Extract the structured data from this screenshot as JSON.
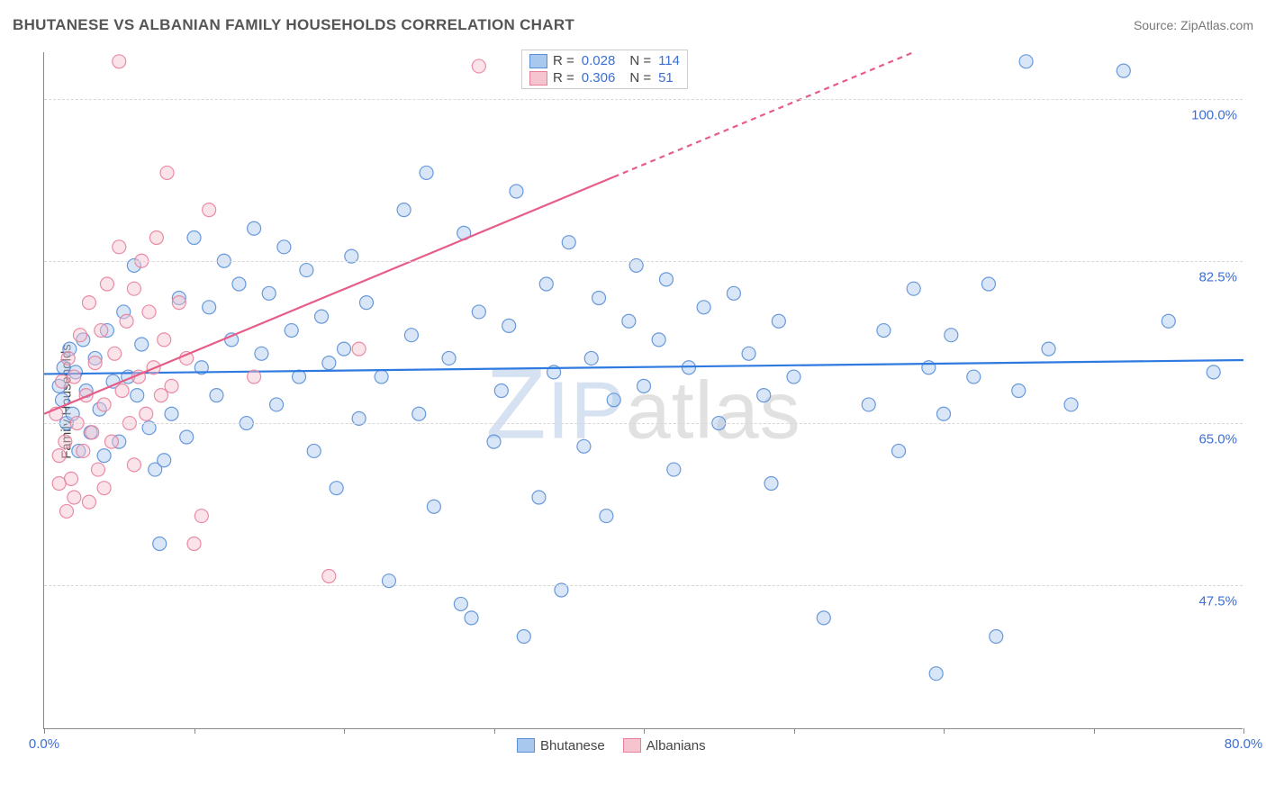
{
  "header": {
    "title": "BHUTANESE VS ALBANIAN FAMILY HOUSEHOLDS CORRELATION CHART",
    "source": "Source: ZipAtlas.com"
  },
  "watermark": {
    "z": "Z",
    "ip": "IP",
    "atlas": "atlas"
  },
  "chart": {
    "type": "scatter-with-regression",
    "ylabel": "Family Households",
    "xlim": [
      0,
      80
    ],
    "ylim": [
      32,
      105
    ],
    "xtick_positions": [
      0,
      10,
      20,
      30,
      40,
      50,
      60,
      70,
      80
    ],
    "xtick_labels": {
      "0": "0.0%",
      "80": "80.0%"
    },
    "ytick_positions": [
      47.5,
      65.0,
      82.5,
      100.0
    ],
    "ytick_labels": [
      "47.5%",
      "65.0%",
      "82.5%",
      "100.0%"
    ],
    "background_color": "#ffffff",
    "grid_color": "#d8d8d8",
    "axis_color": "#888888",
    "label_color": "#3b6fd6",
    "marker_radius": 7.5,
    "marker_opacity": 0.45,
    "marker_stroke_opacity": 0.9,
    "line_width": 2.2,
    "series": [
      {
        "name": "Bhutanese",
        "color_fill": "#a9c8ee",
        "color_stroke": "#5a8fd6",
        "line_color": "#2f7ae0",
        "R": "0.028",
        "N": "114",
        "regression": {
          "x1": 0,
          "y1": 70.3,
          "x2": 80,
          "y2": 71.8,
          "dash_from_x": null
        },
        "points": [
          [
            1.0,
            69.0
          ],
          [
            1.2,
            67.5
          ],
          [
            1.3,
            71.0
          ],
          [
            1.5,
            65.0
          ],
          [
            1.7,
            73.0
          ],
          [
            1.9,
            66.0
          ],
          [
            2.1,
            70.5
          ],
          [
            2.3,
            62.0
          ],
          [
            2.6,
            74.0
          ],
          [
            2.8,
            68.5
          ],
          [
            3.1,
            64.0
          ],
          [
            3.4,
            72.0
          ],
          [
            3.7,
            66.5
          ],
          [
            4.0,
            61.5
          ],
          [
            4.2,
            75.0
          ],
          [
            4.6,
            69.5
          ],
          [
            5.0,
            63.0
          ],
          [
            5.3,
            77.0
          ],
          [
            5.6,
            70.0
          ],
          [
            6.0,
            82.0
          ],
          [
            6.2,
            68.0
          ],
          [
            6.5,
            73.5
          ],
          [
            7.0,
            64.5
          ],
          [
            7.4,
            60.0
          ],
          [
            7.7,
            52.0
          ],
          [
            8.0,
            61.0
          ],
          [
            8.5,
            66.0
          ],
          [
            9.0,
            78.5
          ],
          [
            9.5,
            63.5
          ],
          [
            10.0,
            85.0
          ],
          [
            10.5,
            71.0
          ],
          [
            11.0,
            77.5
          ],
          [
            11.5,
            68.0
          ],
          [
            12.0,
            82.5
          ],
          [
            12.5,
            74.0
          ],
          [
            13.0,
            80.0
          ],
          [
            13.5,
            65.0
          ],
          [
            14.0,
            86.0
          ],
          [
            14.5,
            72.5
          ],
          [
            15.0,
            79.0
          ],
          [
            15.5,
            67.0
          ],
          [
            16.0,
            84.0
          ],
          [
            16.5,
            75.0
          ],
          [
            17.0,
            70.0
          ],
          [
            17.5,
            81.5
          ],
          [
            18.0,
            62.0
          ],
          [
            18.5,
            76.5
          ],
          [
            19.0,
            71.5
          ],
          [
            19.5,
            58.0
          ],
          [
            20.0,
            73.0
          ],
          [
            20.5,
            83.0
          ],
          [
            21.0,
            65.5
          ],
          [
            21.5,
            78.0
          ],
          [
            22.5,
            70.0
          ],
          [
            23.0,
            48.0
          ],
          [
            24.0,
            88.0
          ],
          [
            24.5,
            74.5
          ],
          [
            25.0,
            66.0
          ],
          [
            25.5,
            92.0
          ],
          [
            26.0,
            56.0
          ],
          [
            27.0,
            72.0
          ],
          [
            27.8,
            45.5
          ],
          [
            28.0,
            85.5
          ],
          [
            28.5,
            44.0
          ],
          [
            29.0,
            77.0
          ],
          [
            30.0,
            63.0
          ],
          [
            30.5,
            68.5
          ],
          [
            31.0,
            75.5
          ],
          [
            31.5,
            90.0
          ],
          [
            32.0,
            42.0
          ],
          [
            33.0,
            57.0
          ],
          [
            33.5,
            80.0
          ],
          [
            34.0,
            70.5
          ],
          [
            34.5,
            47.0
          ],
          [
            35.0,
            84.5
          ],
          [
            36.0,
            62.5
          ],
          [
            36.5,
            72.0
          ],
          [
            37.0,
            78.5
          ],
          [
            37.5,
            55.0
          ],
          [
            38.0,
            67.5
          ],
          [
            39.0,
            76.0
          ],
          [
            39.5,
            82.0
          ],
          [
            40.0,
            69.0
          ],
          [
            41.0,
            74.0
          ],
          [
            41.5,
            80.5
          ],
          [
            42.0,
            60.0
          ],
          [
            43.0,
            71.0
          ],
          [
            44.0,
            77.5
          ],
          [
            45.0,
            65.0
          ],
          [
            46.0,
            79.0
          ],
          [
            47.0,
            72.5
          ],
          [
            48.0,
            68.0
          ],
          [
            48.5,
            58.5
          ],
          [
            49.0,
            76.0
          ],
          [
            50.0,
            70.0
          ],
          [
            52.0,
            44.0
          ],
          [
            55.0,
            67.0
          ],
          [
            56.0,
            75.0
          ],
          [
            57.0,
            62.0
          ],
          [
            58.0,
            79.5
          ],
          [
            59.0,
            71.0
          ],
          [
            59.5,
            38.0
          ],
          [
            60.0,
            66.0
          ],
          [
            60.5,
            74.5
          ],
          [
            62.0,
            70.0
          ],
          [
            63.0,
            80.0
          ],
          [
            63.5,
            42.0
          ],
          [
            65.0,
            68.5
          ],
          [
            65.5,
            104.0
          ],
          [
            67.0,
            73.0
          ],
          [
            68.5,
            67.0
          ],
          [
            72.0,
            103.0
          ],
          [
            75.0,
            76.0
          ],
          [
            78.0,
            70.5
          ]
        ]
      },
      {
        "name": "Albanians",
        "color_fill": "#f5c4cf",
        "color_stroke": "#e87f9c",
        "line_color": "#e75d88",
        "R": "0.306",
        "N": "51",
        "regression": {
          "x1": 0,
          "y1": 66.0,
          "x2": 58,
          "y2": 105.0,
          "dash_from_x": 38
        },
        "points": [
          [
            0.8,
            66.0
          ],
          [
            1.0,
            61.5
          ],
          [
            1.2,
            69.5
          ],
          [
            1.4,
            63.0
          ],
          [
            1.6,
            72.0
          ],
          [
            1.8,
            59.0
          ],
          [
            2.0,
            70.0
          ],
          [
            2.2,
            65.0
          ],
          [
            2.4,
            74.5
          ],
          [
            2.6,
            62.0
          ],
          [
            2.8,
            68.0
          ],
          [
            3.0,
            78.0
          ],
          [
            3.2,
            64.0
          ],
          [
            3.4,
            71.5
          ],
          [
            3.6,
            60.0
          ],
          [
            3.8,
            75.0
          ],
          [
            4.0,
            67.0
          ],
          [
            4.2,
            80.0
          ],
          [
            4.5,
            63.0
          ],
          [
            4.7,
            72.5
          ],
          [
            5.0,
            84.0
          ],
          [
            5.2,
            68.5
          ],
          [
            5.5,
            76.0
          ],
          [
            5.7,
            65.0
          ],
          [
            6.0,
            79.5
          ],
          [
            6.3,
            70.0
          ],
          [
            6.5,
            82.5
          ],
          [
            6.8,
            66.0
          ],
          [
            7.0,
            77.0
          ],
          [
            7.3,
            71.0
          ],
          [
            7.5,
            85.0
          ],
          [
            7.8,
            68.0
          ],
          [
            8.0,
            74.0
          ],
          [
            8.2,
            92.0
          ],
          [
            8.5,
            69.0
          ],
          [
            9.0,
            78.0
          ],
          [
            9.5,
            72.0
          ],
          [
            10.0,
            52.0
          ],
          [
            10.5,
            55.0
          ],
          [
            11.0,
            88.0
          ],
          [
            5.0,
            104.0
          ],
          [
            14.0,
            70.0
          ],
          [
            19.0,
            48.5
          ],
          [
            21.0,
            73.0
          ],
          [
            29.0,
            103.5
          ],
          [
            6.0,
            60.5
          ],
          [
            4.0,
            58.0
          ],
          [
            3.0,
            56.5
          ],
          [
            2.0,
            57.0
          ],
          [
            1.5,
            55.5
          ],
          [
            1.0,
            58.5
          ]
        ]
      }
    ]
  },
  "legend_top": {
    "rows": [
      {
        "sw_fill": "#a9c8ee",
        "sw_stroke": "#5a8fd6",
        "r_label": "R =",
        "r_val": "0.028",
        "n_label": "N =",
        "n_val": "114"
      },
      {
        "sw_fill": "#f5c4cf",
        "sw_stroke": "#e87f9c",
        "r_label": "R =",
        "r_val": "0.306",
        "n_label": "N =",
        "n_val": "  51"
      }
    ]
  },
  "legend_bottom": {
    "items": [
      {
        "sw_fill": "#a9c8ee",
        "sw_stroke": "#5a8fd6",
        "label": "Bhutanese"
      },
      {
        "sw_fill": "#f5c4cf",
        "sw_stroke": "#e87f9c",
        "label": "Albanians"
      }
    ]
  }
}
